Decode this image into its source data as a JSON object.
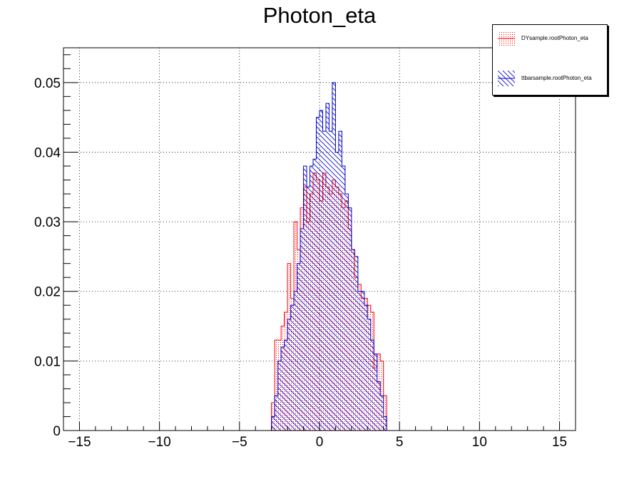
{
  "chart_data": {
    "type": "bar",
    "title": "Photon_eta",
    "xlabel": "",
    "ylabel": "",
    "xlim": [
      -16,
      16
    ],
    "ylim": [
      0,
      0.055
    ],
    "xticks": [
      -15,
      -10,
      -5,
      0,
      5,
      10,
      15
    ],
    "xtick_labels": [
      "−15",
      "−10",
      "−5",
      "0",
      "5",
      "10",
      "15"
    ],
    "yticks": [
      0,
      0.01,
      0.02,
      0.03,
      0.04,
      0.05
    ],
    "ytick_labels": [
      "0",
      "0.01",
      "0.02",
      "0.03",
      "0.04",
      "0.05"
    ],
    "grid": true,
    "legend_position": "top-right",
    "bin_width": 0.2,
    "x_start": -3.0,
    "series": [
      {
        "name": "DYsample.rootPhoton_eta",
        "color": "#ff0000",
        "fill": "dotted",
        "values": [
          0.004,
          0.013,
          0.013,
          0.015,
          0.017,
          0.024,
          0.019,
          0.03,
          0.026,
          0.032,
          0.035,
          0.03,
          0.034,
          0.037,
          0.036,
          0.033,
          0.037,
          0.035,
          0.034,
          0.036,
          0.035,
          0.034,
          0.032,
          0.033,
          0.029,
          0.026,
          0.022,
          0.021,
          0.019,
          0.019,
          0.018,
          0.017,
          0.009,
          0.011,
          0.01,
          0.005
        ]
      },
      {
        "name": "ttbarsample.rootPhoton_eta",
        "color": "#0000cc",
        "fill": "hatched",
        "values": [
          0.002,
          0.005,
          0.01,
          0.012,
          0.013,
          0.016,
          0.018,
          0.02,
          0.024,
          0.029,
          0.038,
          0.035,
          0.038,
          0.039,
          0.045,
          0.046,
          0.043,
          0.047,
          0.043,
          0.05,
          0.04,
          0.043,
          0.038,
          0.034,
          0.032,
          0.026,
          0.025,
          0.02,
          0.02,
          0.018,
          0.016,
          0.013,
          0.011,
          0.007,
          0.005,
          0.002
        ]
      }
    ]
  }
}
